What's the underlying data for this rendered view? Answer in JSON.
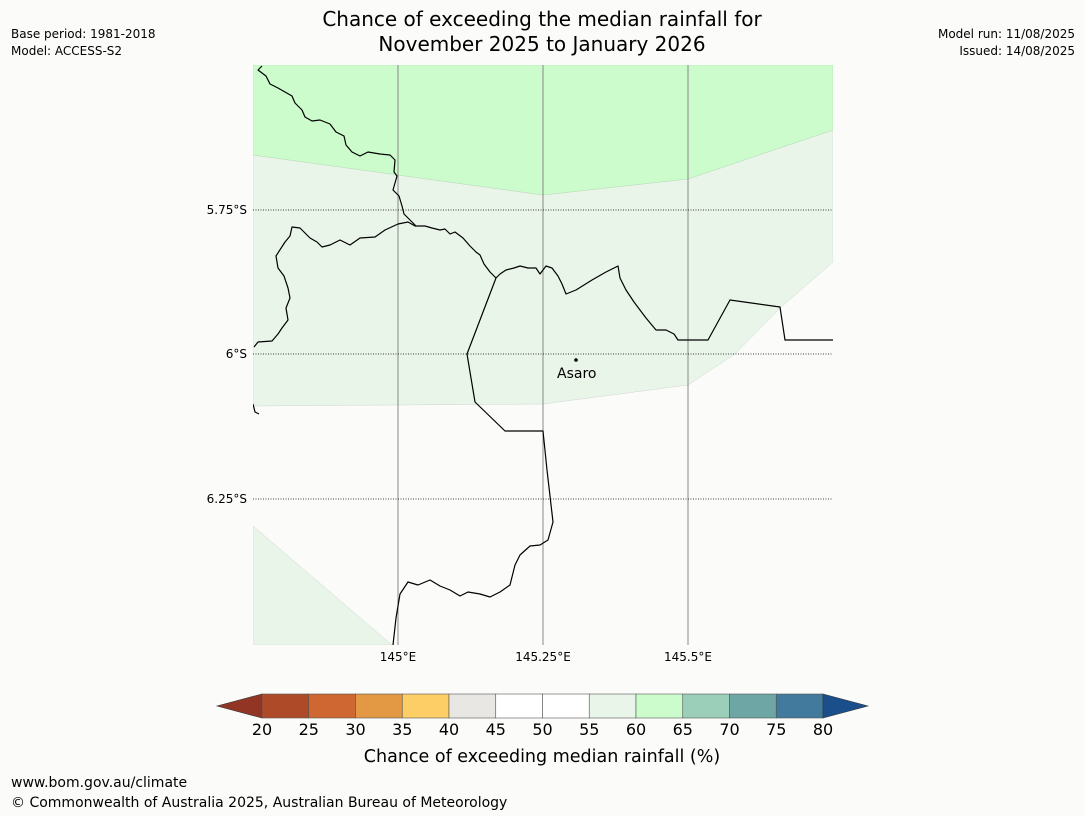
{
  "header": {
    "title_line1": "Chance of exceeding the median rainfall for",
    "title_line2": "November 2025 to January 2026",
    "base_period": "Base period: 1981-2018",
    "model": "Model: ACCESS-S2",
    "model_run": "Model run: 11/08/2025",
    "issued": "Issued: 14/08/2025"
  },
  "map": {
    "lat_labels": [
      "5.75°S",
      "6°S",
      "6.25°S"
    ],
    "lon_labels": [
      "145°E",
      "145.25°E",
      "145.5°E"
    ],
    "place": {
      "name": "Asaro",
      "lat": -5.99,
      "lon": 145.28
    },
    "regions": [
      {
        "category": "60-65",
        "color": "#ccfccc"
      },
      {
        "category": "55-60",
        "color": "#eaf5ea"
      },
      {
        "category": "50-55",
        "color": "#fbfcfa"
      }
    ]
  },
  "legend": {
    "ticks": [
      "20",
      "25",
      "30",
      "35",
      "40",
      "45",
      "50",
      "55",
      "60",
      "65",
      "70",
      "75",
      "80"
    ],
    "colors": [
      "#ae4a28",
      "#cf6733",
      "#e39844",
      "#fdcd66",
      "#e9e7e3",
      "#ffffff",
      "#ffffff",
      "#eaf5ea",
      "#ccfccc",
      "#9ccfb9",
      "#6ea5a5",
      "#417a9d"
    ],
    "low_extend_color": "#933524",
    "high_extend_color": "#1b4f8b",
    "label": "Chance of exceeding median rainfall (%)"
  },
  "footer": {
    "url": "www.bom.gov.au/climate",
    "copyright": "© Commonwealth of Australia 2025, Australian Bureau of Meteorology"
  }
}
